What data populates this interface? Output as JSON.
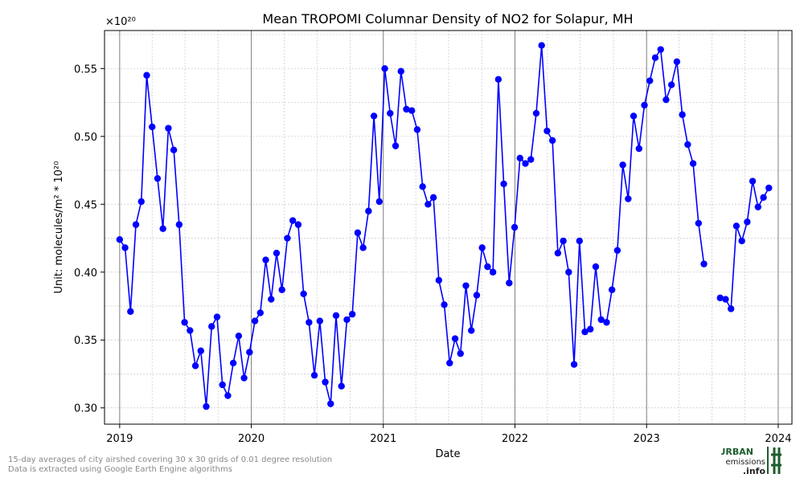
{
  "chart_data": {
    "type": "line",
    "title": "Mean TROPOMI Columnar Density of NO2 for Solapur, MH",
    "xlabel": "Date",
    "ylabel_text": "Unit: molecules/m² * 10²⁰",
    "y_multiplier": "×10²⁰",
    "x_ticks": [
      "2019",
      "2020",
      "2021",
      "2022",
      "2023",
      "2024"
    ],
    "y_ticks": [
      "0.30",
      "0.35",
      "0.40",
      "0.45",
      "0.50",
      "0.55"
    ],
    "xlim": [
      "2018-11-20",
      "2024-02-08"
    ],
    "ylim": [
      0.288,
      0.578
    ],
    "grid": true,
    "line_color": "#0000ff",
    "points": [
      [
        "2019-01-01",
        0.424
      ],
      [
        "2019-01-16",
        0.418
      ],
      [
        "2019-01-31",
        0.371
      ],
      [
        "2019-02-15",
        0.435
      ],
      [
        "2019-03-02",
        0.452
      ],
      [
        "2019-03-17",
        0.545
      ],
      [
        "2019-04-01",
        0.507
      ],
      [
        "2019-04-16",
        0.469
      ],
      [
        "2019-05-01",
        0.432
      ],
      [
        "2019-05-16",
        0.506
      ],
      [
        "2019-05-31",
        0.49
      ],
      [
        "2019-06-15",
        0.435
      ],
      [
        "2019-06-30",
        0.363
      ],
      [
        "2019-07-15",
        0.357
      ],
      [
        "2019-07-30",
        0.331
      ],
      [
        "2019-08-14",
        0.342
      ],
      [
        "2019-08-29",
        0.301
      ],
      [
        "2019-09-13",
        0.36
      ],
      [
        "2019-09-28",
        0.367
      ],
      [
        "2019-10-13",
        0.317
      ],
      [
        "2019-10-28",
        0.309
      ],
      [
        "2019-11-12",
        0.333
      ],
      [
        "2019-11-27",
        0.353
      ],
      [
        "2019-12-12",
        0.322
      ],
      [
        "2019-12-27",
        0.341
      ],
      [
        "2020-01-11",
        0.364
      ],
      [
        "2020-01-26",
        0.37
      ],
      [
        "2020-02-10",
        0.409
      ],
      [
        "2020-02-25",
        0.38
      ],
      [
        "2020-03-11",
        0.414
      ],
      [
        "2020-03-26",
        0.387
      ],
      [
        "2020-04-10",
        0.425
      ],
      [
        "2020-04-25",
        0.438
      ],
      [
        "2020-05-10",
        0.435
      ],
      [
        "2020-05-25",
        0.384
      ],
      [
        "2020-06-09",
        0.363
      ],
      [
        "2020-06-24",
        0.324
      ],
      [
        "2020-07-09",
        0.364
      ],
      [
        "2020-07-24",
        0.319
      ],
      [
        "2020-08-08",
        0.303
      ],
      [
        "2020-08-23",
        0.368
      ],
      [
        "2020-09-07",
        0.316
      ],
      [
        "2020-09-22",
        0.365
      ],
      [
        "2020-10-07",
        0.369
      ],
      [
        "2020-10-22",
        0.429
      ],
      [
        "2020-11-06",
        0.418
      ],
      [
        "2020-11-21",
        0.445
      ],
      [
        "2020-12-06",
        0.515
      ],
      [
        "2020-12-21",
        0.452
      ],
      [
        "2021-01-05",
        0.55
      ],
      [
        "2021-01-20",
        0.517
      ],
      [
        "2021-02-04",
        0.493
      ],
      [
        "2021-02-19",
        0.548
      ],
      [
        "2021-03-06",
        0.52
      ],
      [
        "2021-03-21",
        0.519
      ],
      [
        "2021-04-05",
        0.505
      ],
      [
        "2021-04-20",
        0.463
      ],
      [
        "2021-05-05",
        0.45
      ],
      [
        "2021-05-20",
        0.455
      ],
      [
        "2021-06-04",
        0.394
      ],
      [
        "2021-06-19",
        0.376
      ],
      [
        "2021-07-04",
        0.333
      ],
      [
        "2021-07-19",
        0.351
      ],
      [
        "2021-08-03",
        0.34
      ],
      [
        "2021-08-18",
        0.39
      ],
      [
        "2021-09-02",
        0.357
      ],
      [
        "2021-09-17",
        0.383
      ],
      [
        "2021-10-02",
        0.418
      ],
      [
        "2021-10-17",
        0.404
      ],
      [
        "2021-11-01",
        0.4
      ],
      [
        "2021-11-16",
        0.542
      ],
      [
        "2021-12-01",
        0.465
      ],
      [
        "2021-12-16",
        0.392
      ],
      [
        "2021-12-31",
        0.433
      ],
      [
        "2022-01-15",
        0.484
      ],
      [
        "2022-01-30",
        0.48
      ],
      [
        "2022-02-14",
        0.483
      ],
      [
        "2022-03-01",
        0.517
      ],
      [
        "2022-03-16",
        0.567
      ],
      [
        "2022-03-31",
        0.504
      ],
      [
        "2022-04-15",
        0.497
      ],
      [
        "2022-04-30",
        0.414
      ],
      [
        "2022-05-15",
        0.423
      ],
      [
        "2022-05-30",
        0.4
      ],
      [
        "2022-06-14",
        0.332
      ],
      [
        "2022-06-29",
        0.423
      ],
      [
        "2022-07-14",
        0.356
      ],
      [
        "2022-07-29",
        0.358
      ],
      [
        "2022-08-13",
        0.404
      ],
      [
        "2022-08-28",
        0.365
      ],
      [
        "2022-09-12",
        0.363
      ],
      [
        "2022-09-27",
        0.387
      ],
      [
        "2022-10-12",
        0.416
      ],
      [
        "2022-10-27",
        0.479
      ],
      [
        "2022-11-11",
        0.454
      ],
      [
        "2022-11-26",
        0.515
      ],
      [
        "2022-12-11",
        0.491
      ],
      [
        "2022-12-26",
        0.523
      ],
      [
        "2023-01-10",
        0.541
      ],
      [
        "2023-01-25",
        0.558
      ],
      [
        "2023-02-09",
        0.564
      ],
      [
        "2023-02-24",
        0.527
      ],
      [
        "2023-03-11",
        0.538
      ],
      [
        "2023-03-26",
        0.555
      ],
      [
        "2023-04-10",
        0.516
      ],
      [
        "2023-04-25",
        0.494
      ],
      [
        "2023-05-10",
        0.48
      ],
      [
        "2023-05-25",
        0.436
      ],
      [
        "2023-06-09",
        0.406
      ],
      [
        "2023-06-24",
        null
      ],
      [
        "2023-07-09",
        null
      ],
      [
        "2023-07-24",
        0.381
      ],
      [
        "2023-08-08",
        0.38
      ],
      [
        "2023-08-23",
        0.373
      ],
      [
        "2023-09-07",
        0.434
      ],
      [
        "2023-09-22",
        0.423
      ],
      [
        "2023-10-07",
        0.437
      ],
      [
        "2023-10-22",
        0.467
      ],
      [
        "2023-11-06",
        0.448
      ],
      [
        "2023-11-21",
        0.455
      ],
      [
        "2023-12-06",
        0.462
      ]
    ]
  },
  "footer": {
    "line1": "15-day averages of city airshed covering 30 x 30 grids of 0.01 degree resolution",
    "line2": "Data is extracted using Google Earth Engine algorithms"
  },
  "logo": {
    "line1": "URBAN",
    "line2": "emissions",
    "line3": ".info",
    "accent_color": "#1f5c2e"
  }
}
